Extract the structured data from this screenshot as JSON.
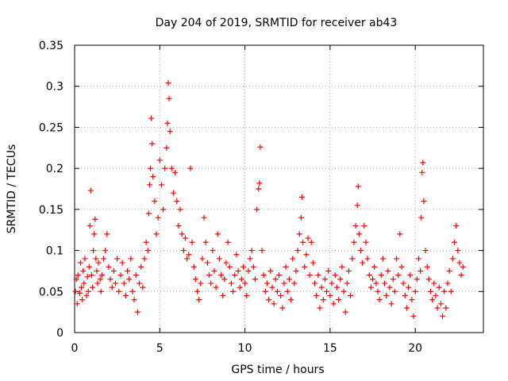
{
  "chart_data": {
    "type": "scatter",
    "title": "Day 204 of 2019, SRMTID for receiver ab43",
    "xlabel": "GPS time / hours",
    "ylabel": "SRMTID / TECUs",
    "xlim": [
      0,
      24
    ],
    "ylim": [
      0,
      0.35
    ],
    "xticks": [
      "0",
      "5",
      "10",
      "15",
      "20"
    ],
    "xtick_values": [
      0,
      5,
      10,
      15,
      20
    ],
    "yticks": [
      "0",
      "0.05",
      "0.1",
      "0.15",
      "0.2",
      "0.25",
      "0.3",
      "0.35"
    ],
    "ytick_values": [
      0,
      0.05,
      0.1,
      0.15,
      0.2,
      0.25,
      0.3,
      0.35
    ],
    "grid": true,
    "marker": "+",
    "series_color": "#ff0000",
    "series": [
      {
        "name": "SRMTID ab43",
        "points": [
          [
            0.05,
            0.05
          ],
          [
            0.1,
            0.065
          ],
          [
            0.15,
            0.035
          ],
          [
            0.2,
            0.07
          ],
          [
            0.3,
            0.048
          ],
          [
            0.35,
            0.085
          ],
          [
            0.4,
            0.055
          ],
          [
            0.45,
            0.04
          ],
          [
            0.5,
            0.075
          ],
          [
            0.55,
            0.06
          ],
          [
            0.6,
            0.09
          ],
          [
            0.7,
            0.045
          ],
          [
            0.75,
            0.068
          ],
          [
            0.8,
            0.05
          ],
          [
            0.85,
            0.08
          ],
          [
            0.9,
            0.13
          ],
          [
            0.95,
            0.173
          ],
          [
            1.0,
            0.07
          ],
          [
            1.05,
            0.055
          ],
          [
            1.1,
            0.1
          ],
          [
            1.15,
            0.12
          ],
          [
            1.2,
            0.138
          ],
          [
            1.25,
            0.09
          ],
          [
            1.3,
            0.075
          ],
          [
            1.35,
            0.06
          ],
          [
            1.4,
            0.085
          ],
          [
            1.5,
            0.065
          ],
          [
            1.55,
            0.05
          ],
          [
            1.6,
            0.07
          ],
          [
            1.7,
            0.09
          ],
          [
            1.8,
            0.1
          ],
          [
            1.9,
            0.12
          ],
          [
            2.0,
            0.08
          ],
          [
            2.1,
            0.065
          ],
          [
            2.2,
            0.055
          ],
          [
            2.3,
            0.075
          ],
          [
            2.4,
            0.06
          ],
          [
            2.5,
            0.09
          ],
          [
            2.6,
            0.05
          ],
          [
            2.7,
            0.07
          ],
          [
            2.8,
            0.085
          ],
          [
            2.9,
            0.06
          ],
          [
            3.0,
            0.045
          ],
          [
            3.1,
            0.075
          ],
          [
            3.2,
            0.065
          ],
          [
            3.3,
            0.09
          ],
          [
            3.4,
            0.05
          ],
          [
            3.5,
            0.04
          ],
          [
            3.6,
            0.07
          ],
          [
            3.7,
            0.025
          ],
          [
            3.8,
            0.06
          ],
          [
            3.9,
            0.08
          ],
          [
            4.0,
            0.055
          ],
          [
            4.1,
            0.09
          ],
          [
            4.2,
            0.11
          ],
          [
            4.3,
            0.1
          ],
          [
            4.35,
            0.145
          ],
          [
            4.4,
            0.18
          ],
          [
            4.45,
            0.2
          ],
          [
            4.5,
            0.261
          ],
          [
            4.55,
            0.23
          ],
          [
            4.6,
            0.19
          ],
          [
            4.7,
            0.16
          ],
          [
            4.8,
            0.12
          ],
          [
            4.9,
            0.14
          ],
          [
            5.0,
            0.21
          ],
          [
            5.1,
            0.18
          ],
          [
            5.2,
            0.15
          ],
          [
            5.3,
            0.2
          ],
          [
            5.4,
            0.225
          ],
          [
            5.45,
            0.255
          ],
          [
            5.5,
            0.304
          ],
          [
            5.55,
            0.285
          ],
          [
            5.6,
            0.245
          ],
          [
            5.7,
            0.2
          ],
          [
            5.8,
            0.17
          ],
          [
            5.9,
            0.195
          ],
          [
            6.0,
            0.16
          ],
          [
            6.1,
            0.13
          ],
          [
            6.2,
            0.15
          ],
          [
            6.3,
            0.12
          ],
          [
            6.4,
            0.1
          ],
          [
            6.5,
            0.115
          ],
          [
            6.6,
            0.09
          ],
          [
            6.7,
            0.095
          ],
          [
            6.8,
            0.2
          ],
          [
            6.9,
            0.11
          ],
          [
            7.0,
            0.08
          ],
          [
            7.1,
            0.065
          ],
          [
            7.2,
            0.05
          ],
          [
            7.3,
            0.04
          ],
          [
            7.4,
            0.06
          ],
          [
            7.5,
            0.09
          ],
          [
            7.6,
            0.14
          ],
          [
            7.7,
            0.11
          ],
          [
            7.8,
            0.085
          ],
          [
            7.9,
            0.07
          ],
          [
            8.0,
            0.06
          ],
          [
            8.1,
            0.1
          ],
          [
            8.2,
            0.075
          ],
          [
            8.3,
            0.055
          ],
          [
            8.4,
            0.12
          ],
          [
            8.5,
            0.09
          ],
          [
            8.6,
            0.07
          ],
          [
            8.7,
            0.045
          ],
          [
            8.8,
            0.065
          ],
          [
            8.9,
            0.085
          ],
          [
            9.0,
            0.11
          ],
          [
            9.1,
            0.08
          ],
          [
            9.2,
            0.06
          ],
          [
            9.3,
            0.05
          ],
          [
            9.4,
            0.07
          ],
          [
            9.5,
            0.095
          ],
          [
            9.6,
            0.075
          ],
          [
            9.7,
            0.055
          ],
          [
            9.8,
            0.065
          ],
          [
            9.9,
            0.08
          ],
          [
            10.0,
            0.06
          ],
          [
            10.1,
            0.045
          ],
          [
            10.2,
            0.075
          ],
          [
            10.3,
            0.09
          ],
          [
            10.4,
            0.1
          ],
          [
            10.5,
            0.08
          ],
          [
            10.6,
            0.065
          ],
          [
            10.7,
            0.15
          ],
          [
            10.8,
            0.175
          ],
          [
            10.85,
            0.182
          ],
          [
            10.9,
            0.226
          ],
          [
            11.0,
            0.1
          ],
          [
            11.1,
            0.07
          ],
          [
            11.2,
            0.05
          ],
          [
            11.3,
            0.06
          ],
          [
            11.4,
            0.04
          ],
          [
            11.5,
            0.075
          ],
          [
            11.6,
            0.055
          ],
          [
            11.7,
            0.035
          ],
          [
            11.8,
            0.065
          ],
          [
            11.9,
            0.05
          ],
          [
            12.0,
            0.07
          ],
          [
            12.1,
            0.045
          ],
          [
            12.2,
            0.03
          ],
          [
            12.3,
            0.06
          ],
          [
            12.4,
            0.08
          ],
          [
            12.5,
            0.05
          ],
          [
            12.6,
            0.065
          ],
          [
            12.7,
            0.04
          ],
          [
            12.8,
            0.09
          ],
          [
            12.9,
            0.06
          ],
          [
            13.0,
            0.075
          ],
          [
            13.1,
            0.1
          ],
          [
            13.2,
            0.12
          ],
          [
            13.3,
            0.14
          ],
          [
            13.35,
            0.165
          ],
          [
            13.4,
            0.11
          ],
          [
            13.5,
            0.08
          ],
          [
            13.6,
            0.095
          ],
          [
            13.7,
            0.115
          ],
          [
            13.8,
            0.07
          ],
          [
            13.9,
            0.11
          ],
          [
            14.0,
            0.085
          ],
          [
            14.1,
            0.06
          ],
          [
            14.2,
            0.045
          ],
          [
            14.3,
            0.07
          ],
          [
            14.4,
            0.03
          ],
          [
            14.5,
            0.055
          ],
          [
            14.6,
            0.04
          ],
          [
            14.7,
            0.065
          ],
          [
            14.8,
            0.05
          ],
          [
            14.9,
            0.075
          ],
          [
            15.0,
            0.045
          ],
          [
            15.1,
            0.06
          ],
          [
            15.2,
            0.035
          ],
          [
            15.3,
            0.07
          ],
          [
            15.4,
            0.055
          ],
          [
            15.5,
            0.04
          ],
          [
            15.6,
            0.065
          ],
          [
            15.7,
            0.08
          ],
          [
            15.8,
            0.05
          ],
          [
            15.9,
            0.025
          ],
          [
            16.0,
            0.06
          ],
          [
            16.1,
            0.075
          ],
          [
            16.2,
            0.045
          ],
          [
            16.3,
            0.09
          ],
          [
            16.4,
            0.11
          ],
          [
            16.5,
            0.13
          ],
          [
            16.6,
            0.155
          ],
          [
            16.65,
            0.178
          ],
          [
            16.7,
            0.12
          ],
          [
            16.8,
            0.1
          ],
          [
            16.9,
            0.085
          ],
          [
            17.0,
            0.13
          ],
          [
            17.1,
            0.11
          ],
          [
            17.2,
            0.09
          ],
          [
            17.3,
            0.07
          ],
          [
            17.4,
            0.055
          ],
          [
            17.5,
            0.065
          ],
          [
            17.6,
            0.08
          ],
          [
            17.7,
            0.06
          ],
          [
            17.8,
            0.05
          ],
          [
            17.9,
            0.04
          ],
          [
            18.0,
            0.07
          ],
          [
            18.1,
            0.09
          ],
          [
            18.2,
            0.06
          ],
          [
            18.3,
            0.045
          ],
          [
            18.4,
            0.075
          ],
          [
            18.5,
            0.055
          ],
          [
            18.6,
            0.035
          ],
          [
            18.7,
            0.065
          ],
          [
            18.8,
            0.05
          ],
          [
            18.9,
            0.09
          ],
          [
            19.0,
            0.07
          ],
          [
            19.1,
            0.12
          ],
          [
            19.2,
            0.08
          ],
          [
            19.3,
            0.06
          ],
          [
            19.4,
            0.045
          ],
          [
            19.5,
            0.03
          ],
          [
            19.6,
            0.055
          ],
          [
            19.7,
            0.07
          ],
          [
            19.8,
            0.04
          ],
          [
            19.9,
            0.02
          ],
          [
            20.0,
            0.05
          ],
          [
            20.1,
            0.065
          ],
          [
            20.2,
            0.09
          ],
          [
            20.3,
            0.075
          ],
          [
            20.35,
            0.14
          ],
          [
            20.4,
            0.195
          ],
          [
            20.45,
            0.207
          ],
          [
            20.5,
            0.16
          ],
          [
            20.6,
            0.1
          ],
          [
            20.7,
            0.08
          ],
          [
            20.8,
            0.065
          ],
          [
            20.9,
            0.05
          ],
          [
            21.0,
            0.04
          ],
          [
            21.1,
            0.06
          ],
          [
            21.2,
            0.045
          ],
          [
            21.3,
            0.03
          ],
          [
            21.4,
            0.055
          ],
          [
            21.5,
            0.035
          ],
          [
            21.6,
            0.02
          ],
          [
            21.7,
            0.05
          ],
          [
            21.8,
            0.03
          ],
          [
            21.9,
            0.06
          ],
          [
            22.0,
            0.075
          ],
          [
            22.1,
            0.05
          ],
          [
            22.2,
            0.09
          ],
          [
            22.3,
            0.11
          ],
          [
            22.4,
            0.13
          ],
          [
            22.5,
            0.1
          ],
          [
            22.6,
            0.085
          ],
          [
            22.7,
            0.07
          ],
          [
            22.8,
            0.08
          ]
        ]
      }
    ]
  }
}
